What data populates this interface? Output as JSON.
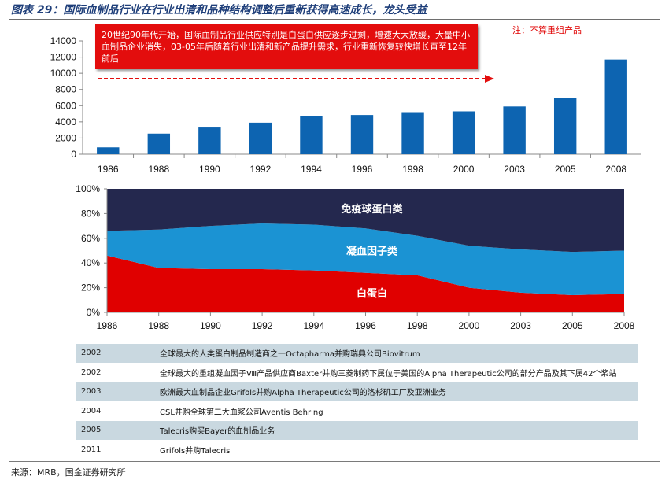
{
  "figure": {
    "title": "图表 29：国际血制品行业在行业出清和品种结构调整后重新获得高速成长，龙头受益",
    "note": "注：不算重组产品",
    "annotation": "20世纪90年代开始，国际血制品行业供应特别是白蛋白供应逐步过剩，增速大大放缓，大量中小血制品企业消失，03-05年后随着行业出清和新产品提升需求，行业重新恢复较快增长直至12年前后",
    "source": "来源：MRB，国金证券研究所"
  },
  "chart_data": [
    {
      "type": "bar",
      "categories": [
        "1986",
        "1988",
        "1990",
        "1992",
        "1994",
        "1996",
        "1998",
        "2000",
        "2003",
        "2005",
        "2008"
      ],
      "values": [
        850,
        2550,
        3300,
        3900,
        4700,
        4850,
        5200,
        5300,
        5900,
        7000,
        11700
      ],
      "ylim": [
        0,
        14000
      ],
      "yticks": [
        "0",
        "2000",
        "4000",
        "6000",
        "8000",
        "10000",
        "12000",
        "14000"
      ],
      "grid": false,
      "bar_color": "#0d64b1"
    },
    {
      "type": "area",
      "stacked": true,
      "categories": [
        "1986",
        "1988",
        "1990",
        "1992",
        "1994",
        "1996",
        "1998",
        "2000",
        "2003",
        "2005",
        "2008"
      ],
      "yticks": [
        "0%",
        "20%",
        "40%",
        "60%",
        "80%",
        "100%"
      ],
      "ylim": [
        0,
        100
      ],
      "series": [
        {
          "name": "白蛋白",
          "color": "#e00000",
          "values": [
            46,
            36,
            35,
            35,
            34,
            32,
            30,
            20,
            16,
            14,
            15
          ]
        },
        {
          "name": "凝血因子类",
          "color": "#1b93d3",
          "values": [
            20,
            31,
            35,
            37,
            37,
            36,
            32,
            34,
            35,
            35,
            35
          ]
        },
        {
          "name": "免疫球蛋白类",
          "color": "#24284e",
          "values": [
            34,
            33,
            30,
            28,
            29,
            32,
            38,
            46,
            49,
            51,
            50
          ]
        }
      ]
    }
  ],
  "milestones": [
    {
      "year": "2002",
      "text": "全球最大的人类蛋白制品制造商之一Octapharma并购瑞典公司Biovitrum"
    },
    {
      "year": "2002",
      "text": "全球最大的重组凝血因子Ⅷ产品供应商Baxter并购三菱制药下属位于美国的Alpha Therapeutic公司的部分产品及其下属42个浆站"
    },
    {
      "year": "2003",
      "text": "欧洲最大血制品企业Grifols并购Alpha Therapeutic公司的洛杉矶工厂及亚洲业务"
    },
    {
      "year": "2004",
      "text": "CSL并购全球第二大血浆公司Aventis Behring"
    },
    {
      "year": "2005",
      "text": "Talecris购买Bayer的血制品业务"
    },
    {
      "year": "2011",
      "text": "Grifols并购Talecris"
    }
  ]
}
